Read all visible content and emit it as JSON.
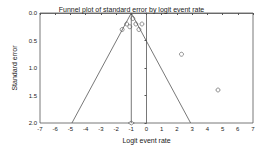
{
  "chart_data": {
    "type": "scatter",
    "title": "Funnel plot of standard error by logit event rate",
    "x_label": "Logit event rate",
    "y_label": "Standard error",
    "xlim": [
      -7,
      7
    ],
    "xticks": [
      -7,
      -6,
      -5,
      -4,
      -3,
      -2,
      -1,
      0,
      1,
      2,
      3,
      4,
      5,
      6,
      7
    ],
    "ylim": [
      2,
      0
    ],
    "yticks": [
      {
        "value": 0,
        "label": "0.0"
      },
      0.5,
      {
        "value": 1,
        "label": "1.0"
      },
      1.5,
      {
        "value": 2,
        "label": "2.0"
      }
    ],
    "grid": false,
    "series": [
      {
        "type": "scatter",
        "marker": "circle",
        "color": "#555555",
        "x": [
          -1.6,
          -1.3,
          -1.1,
          -0.9,
          -0.7,
          -0.5,
          -0.3,
          2.3,
          4.7
        ],
        "values": [
          0.3,
          0.2,
          0.25,
          0.1,
          0.2,
          0.3,
          0.2,
          0.75,
          1.4
        ]
      },
      {
        "type": "line",
        "line_style": "solid",
        "color": "#555555",
        "x": [
          -4.9,
          -1,
          2.9
        ],
        "values": [
          2,
          0,
          2
        ]
      },
      {
        "type": "line",
        "line_style": "solid",
        "color": "#555555",
        "x": [
          -1,
          -1
        ],
        "values": [
          0,
          2
        ]
      },
      {
        "type": "scatter",
        "marker": "diamond",
        "color": "#555555",
        "x": [
          -1
        ],
        "values": [
          2
        ]
      }
    ]
  }
}
